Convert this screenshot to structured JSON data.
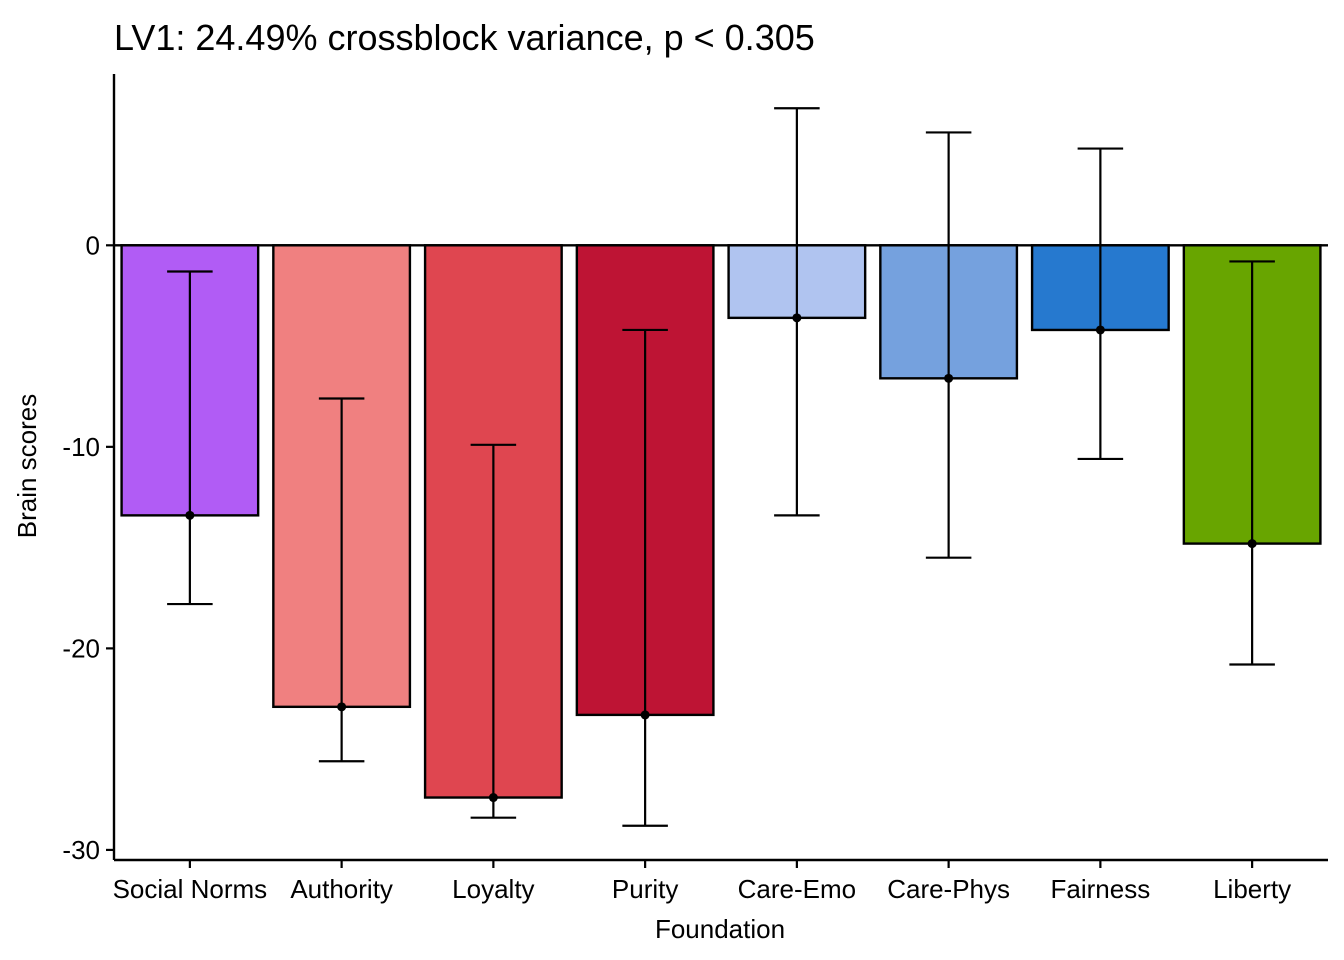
{
  "chart_data": {
    "type": "bar",
    "title": "LV1: 24.49% crossblock variance, p < 0.305",
    "xlabel": "Foundation",
    "ylabel": "Brain scores",
    "ylim": [
      -30.5,
      8.5
    ],
    "yticks": [
      0,
      -10,
      -20,
      -30
    ],
    "grid": false,
    "categories": [
      "Social Norms",
      "Authority",
      "Loyalty",
      "Purity",
      "Care-Emo",
      "Care-Phys",
      "Fairness",
      "Liberty"
    ],
    "values": [
      -13.4,
      -22.9,
      -27.4,
      -23.3,
      -3.6,
      -6.6,
      -4.2,
      -14.8
    ],
    "error_low": [
      -17.8,
      -25.6,
      -28.4,
      -28.8,
      -13.4,
      -15.5,
      -10.6,
      -20.8
    ],
    "error_high": [
      -1.3,
      -7.6,
      -9.9,
      -4.2,
      6.8,
      5.6,
      4.8,
      -0.8
    ],
    "colors": [
      "#b15cf5",
      "#f08080",
      "#df4650",
      "#be1434",
      "#b0c4f0",
      "#75a1de",
      "#2679cf",
      "#68a500"
    ]
  }
}
